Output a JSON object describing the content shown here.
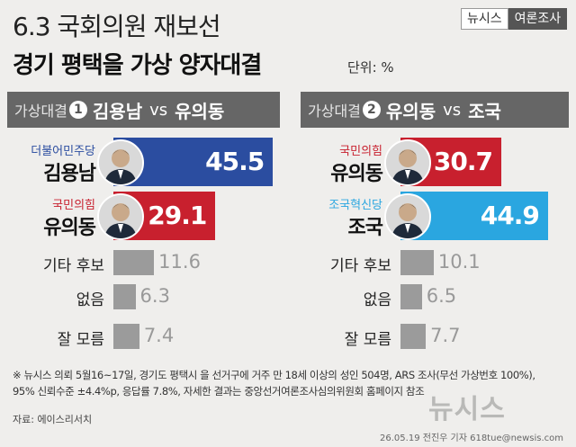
{
  "title_line1": "6.3 국회의원 재보선",
  "title_line2": "경기 평택을 가상 양자대결",
  "unit": "단위: %",
  "brand": {
    "left": "뉴시스",
    "right": "여론조사"
  },
  "colors": {
    "democratic": "#2b4da0",
    "ppp": "#c8202e",
    "rebuilding": "#2aa6e0",
    "other": "#9b9b9b",
    "democratic_text": "#2b4da0",
    "ppp_text": "#c8202e",
    "rebuilding_text": "#2aa6e0"
  },
  "chart_data": [
    {
      "type": "bar",
      "header": {
        "prefix": "가상대결",
        "number": "1",
        "candidate_a": "김용남",
        "vs": "vs",
        "candidate_b": "유의동"
      },
      "xlim": [
        0,
        60
      ],
      "candidates": [
        {
          "party": "더불어민주당",
          "name": "김용남",
          "value": 45.5,
          "color_key": "democratic"
        },
        {
          "party": "국민의힘",
          "name": "유의동",
          "value": 29.1,
          "color_key": "ppp"
        }
      ],
      "others": [
        {
          "label": "기타 후보",
          "value": 11.6
        },
        {
          "label": "없음",
          "value": 6.3
        },
        {
          "label": "잘 모름",
          "value": 7.4
        }
      ]
    },
    {
      "type": "bar",
      "header": {
        "prefix": "가상대결",
        "number": "2",
        "candidate_a": "유의동",
        "vs": "vs",
        "candidate_b": "조국"
      },
      "xlim": [
        0,
        60
      ],
      "candidates": [
        {
          "party": "국민의힘",
          "name": "유의동",
          "value": 30.7,
          "color_key": "ppp"
        },
        {
          "party": "조국혁신당",
          "name": "조국",
          "value": 44.9,
          "color_key": "rebuilding"
        }
      ],
      "others": [
        {
          "label": "기타 후보",
          "value": 10.1
        },
        {
          "label": "없음",
          "value": 6.5
        },
        {
          "label": "잘 모름",
          "value": 7.7
        }
      ]
    }
  ],
  "note_line1": "※ 뉴시스 의뢰 5월16~17일, 경기도 평택시 을 선거구에 거주 만 18세 이상의 성인 504명, ARS 조사(무선 가상번호 100%),",
  "note_line2": "95% 신뢰수준 ±4.4%p, 응답률 7.8%, 자세한 결과는 중앙선거여론조사심의위원회 홈페이지 참조",
  "source": "자료: 에이스리서치",
  "footer": "26.05.19 전진우 기자 618tue@newsis.com",
  "watermark": "뉴시스"
}
